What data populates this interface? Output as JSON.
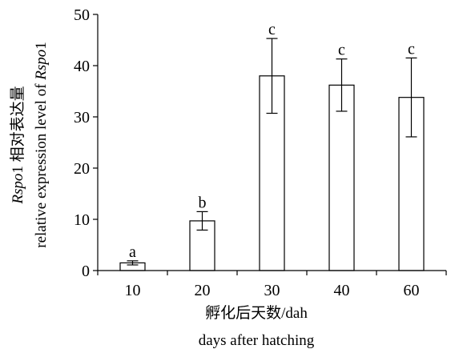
{
  "chart_data": {
    "type": "bar",
    "categories": [
      "10",
      "20",
      "30",
      "40",
      "60"
    ],
    "values": [
      1.5,
      9.7,
      38.0,
      36.2,
      33.8
    ],
    "error_bars": [
      0.4,
      1.8,
      7.3,
      5.1,
      7.7
    ],
    "significance_labels": [
      "a",
      "b",
      "c",
      "c",
      "c"
    ],
    "xlabel_cn": "孵化后天数/dah",
    "xlabel_en": "days after hatching",
    "ylabel_cn_prefix": "Rspo",
    "ylabel_cn_suffix": "1 相对表达量",
    "ylabel_en_prefix": "relative expression level of ",
    "ylabel_en_italic": "Rspo",
    "ylabel_en_suffix": "1",
    "ylim": [
      0,
      50
    ],
    "yticks": [
      0,
      10,
      20,
      30,
      40,
      50
    ],
    "grid": false,
    "bar_fill": "#ffffff",
    "bar_stroke": "#000000"
  }
}
